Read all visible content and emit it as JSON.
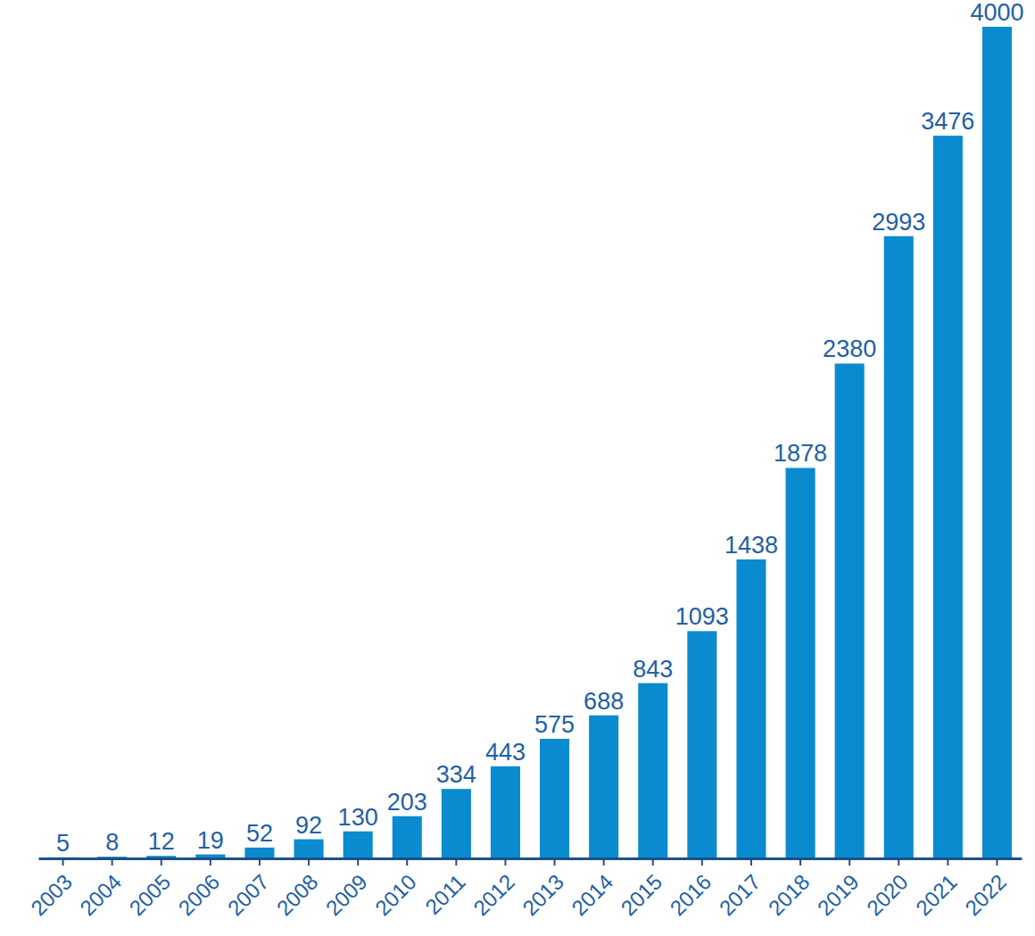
{
  "chart_data": {
    "type": "bar",
    "categories": [
      "2003",
      "2004",
      "2005",
      "2006",
      "2007",
      "2008",
      "2009",
      "2010",
      "2011",
      "2012",
      "2013",
      "2014",
      "2015",
      "2016",
      "2017",
      "2018",
      "2019",
      "2020",
      "2021",
      "2022"
    ],
    "values": [
      5,
      8,
      12,
      19,
      52,
      92,
      130,
      203,
      334,
      443,
      575,
      688,
      843,
      1093,
      1438,
      1878,
      2380,
      2993,
      3476,
      4000
    ],
    "color": "#0a8bd0",
    "ylim": [
      0,
      4000
    ],
    "grid": false,
    "data_labels": true,
    "tick_labels": "x"
  }
}
